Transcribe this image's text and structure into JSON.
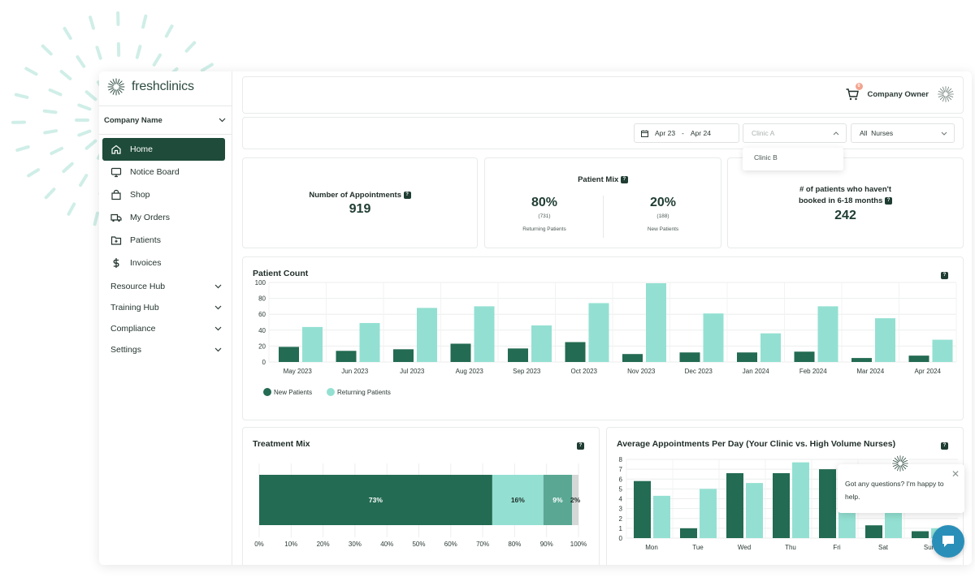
{
  "brand": {
    "name_part1": "fresh",
    "name_part2": "clinics"
  },
  "sidebar": {
    "company": "Company Name",
    "items": [
      {
        "label": "Home",
        "icon": "home-icon",
        "active": true
      },
      {
        "label": "Notice Board",
        "icon": "monitor-icon"
      },
      {
        "label": "Shop",
        "icon": "shop-icon"
      },
      {
        "label": "My Orders",
        "icon": "truck-icon"
      },
      {
        "label": "Patients",
        "icon": "folder-plus-icon"
      },
      {
        "label": "Invoices",
        "icon": "dollar-icon"
      }
    ],
    "groups": [
      "Resource Hub",
      "Training Hub",
      "Compliance",
      "Settings"
    ]
  },
  "topbar": {
    "user": "Company Owner",
    "cart_count": "0"
  },
  "filters": {
    "date_from": "Apr 23",
    "date_sep": "-",
    "date_to": "Apr 24",
    "clinic_placeholder": "Clinic A",
    "clinic_option": "Clinic B",
    "nurses": "All  Nurses"
  },
  "kpis": {
    "appointments": {
      "title": "Number of Appointments",
      "value": "919"
    },
    "patient_mix": {
      "title": "Patient Mix",
      "returning": {
        "pct": "80%",
        "count": "(731)",
        "label": "Returning Patients"
      },
      "new": {
        "pct": "20%",
        "count": "(188)",
        "label": "New Patients"
      }
    },
    "not_booked": {
      "title_line1": "# of patients who haven't",
      "title_line2": "booked in 6-18 months",
      "value": "242"
    }
  },
  "info_glyph": "?",
  "chart_data": [
    {
      "type": "bar",
      "title": "Patient Count",
      "categories": [
        "May 2023",
        "Jun 2023",
        "Jul 2023",
        "Aug 2023",
        "Sep 2023",
        "Oct 2023",
        "Nov 2023",
        "Dec 2023",
        "Jan 2024",
        "Feb 2024",
        "Mar 2024",
        "Apr 2024"
      ],
      "series": [
        {
          "name": "New Patients",
          "color": "#236b52",
          "values": [
            19,
            14,
            16,
            23,
            17,
            25,
            10,
            12,
            12,
            13,
            5,
            8
          ]
        },
        {
          "name": "Returning Patients",
          "color": "#93e0d2",
          "values": [
            44,
            49,
            68,
            70,
            46,
            74,
            99,
            61,
            36,
            70,
            55,
            28
          ]
        }
      ],
      "ylim": [
        0,
        100
      ],
      "yticks": [
        0,
        20,
        40,
        60,
        80,
        100
      ],
      "legend": "bottom-left"
    },
    {
      "type": "bar",
      "title": "Treatment Mix",
      "stacked": true,
      "orientation": "horizontal",
      "segments": [
        {
          "label": "73%",
          "value": 73,
          "color": "#236b52"
        },
        {
          "label": "16%",
          "value": 16,
          "color": "#93e0d2"
        },
        {
          "label": "9%",
          "value": 9,
          "color": "#5aa894"
        },
        {
          "label": "2%",
          "value": 2,
          "color": "#d4d8d6"
        }
      ],
      "xticks": [
        "0%",
        "10%",
        "20%",
        "30%",
        "40%",
        "50%",
        "60%",
        "70%",
        "80%",
        "90%",
        "100%"
      ]
    },
    {
      "type": "bar",
      "title": "Average Appointments Per Day (Your Clinic vs. High Volume Nurses)",
      "categories": [
        "Mon",
        "Tue",
        "Wed",
        "Thu",
        "Fri",
        "Sat",
        "Sun"
      ],
      "series": [
        {
          "color": "#236b52",
          "values": [
            5.8,
            1.0,
            6.6,
            6.6,
            7.0,
            1.3,
            0.7
          ]
        },
        {
          "color": "#93e0d2",
          "values": [
            4.3,
            5.0,
            5.6,
            7.7,
            3.3,
            3.1,
            1.0
          ]
        }
      ],
      "ylim": [
        0,
        8
      ],
      "yticks": [
        0,
        1,
        2,
        3,
        4,
        5,
        6,
        7,
        8
      ]
    }
  ],
  "chat": {
    "message": "Got any questions? I'm happy to help."
  }
}
